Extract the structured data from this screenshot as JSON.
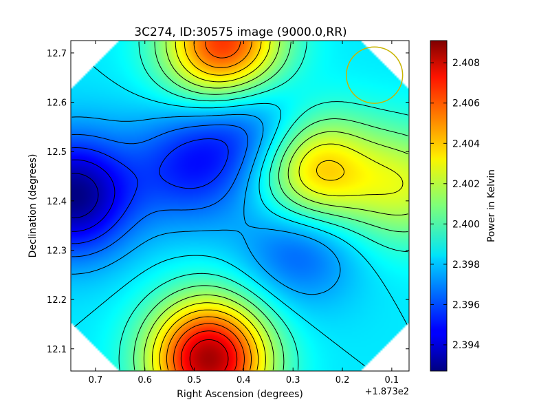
{
  "chart_data": {
    "type": "heatmap",
    "title": "3C274, ID:30575 image (9000.0,RR)",
    "xlabel": "Right Ascension (degrees)",
    "ylabel": "Declination (degrees)",
    "x_offset_label": "+1.873e2",
    "x_ticks": [
      "0.7",
      "0.6",
      "0.5",
      "0.4",
      "0.3",
      "0.2",
      "0.1"
    ],
    "x_tick_values": [
      0.7,
      0.6,
      0.5,
      0.4,
      0.3,
      0.2,
      0.1
    ],
    "xlim": [
      0.75,
      0.065
    ],
    "y_ticks": [
      "12.1",
      "12.2",
      "12.3",
      "12.4",
      "12.5",
      "12.6",
      "12.7"
    ],
    "y_tick_values": [
      12.1,
      12.2,
      12.3,
      12.4,
      12.5,
      12.6,
      12.7
    ],
    "ylim": [
      12.055,
      12.725
    ],
    "colorbar": {
      "label": "Power in Kelvin",
      "ticks": [
        "2.394",
        "2.396",
        "2.398",
        "2.400",
        "2.402",
        "2.404",
        "2.406",
        "2.408"
      ],
      "tick_values": [
        2.394,
        2.396,
        2.398,
        2.4,
        2.402,
        2.404,
        2.406,
        2.408
      ],
      "range": [
        2.3927,
        2.4091
      ],
      "colormap": "jet"
    },
    "features": [
      {
        "kind": "minimum",
        "x": 0.745,
        "y": 12.41,
        "value": 2.3928
      },
      {
        "kind": "minimum",
        "x": 0.51,
        "y": 12.47,
        "value": 2.3955
      },
      {
        "kind": "minimum",
        "x": 0.38,
        "y": 12.55,
        "value": 2.3955
      },
      {
        "kind": "minimum",
        "x": 0.285,
        "y": 12.32,
        "value": 2.3955
      },
      {
        "kind": "maximum",
        "x": 0.47,
        "y": 12.08,
        "value": 2.4085
      },
      {
        "kind": "maximum",
        "x": 0.44,
        "y": 12.715,
        "value": 2.4065
      },
      {
        "kind": "maximum",
        "x": 0.26,
        "y": 12.455,
        "value": 2.4045
      },
      {
        "kind": "maximum",
        "x": 0.07,
        "y": 12.43,
        "value": 2.402
      }
    ],
    "beam_circle": {
      "x": 0.135,
      "y": 12.655,
      "radius_deg": 0.057,
      "color": "#c8b400"
    },
    "grid": false
  }
}
